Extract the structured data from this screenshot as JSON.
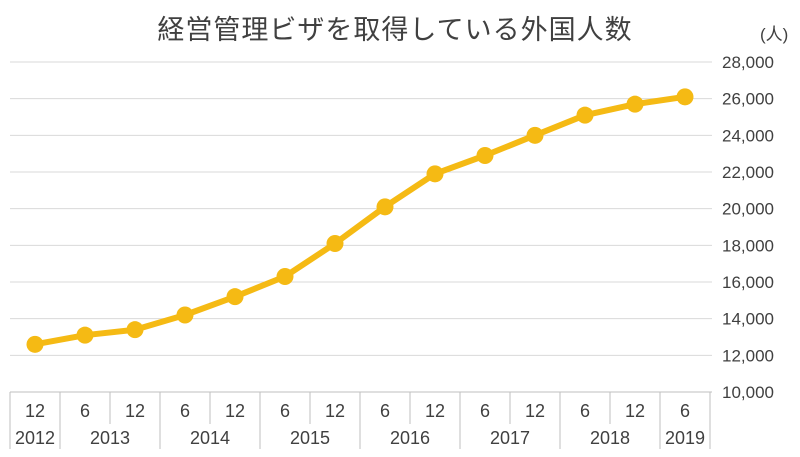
{
  "chart_data": {
    "type": "line",
    "title": "経営管理ビザを取得している外国人数",
    "unit_label": "(人)",
    "ylim": [
      10000,
      28000
    ],
    "y_ticks": [
      "10,000",
      "12,000",
      "14,000",
      "16,000",
      "18,000",
      "20,000",
      "22,000",
      "24,000",
      "26,000",
      "28,000"
    ],
    "grid": true,
    "line_color": "#F5BA14",
    "x_months": [
      "12",
      "6",
      "12",
      "6",
      "12",
      "6",
      "12",
      "6",
      "12",
      "6",
      "12",
      "6",
      "12",
      "6"
    ],
    "x_years": [
      {
        "label": "2012",
        "span": 1
      },
      {
        "label": "2013",
        "span": 2
      },
      {
        "label": "2014",
        "span": 2
      },
      {
        "label": "2015",
        "span": 2
      },
      {
        "label": "2016",
        "span": 2
      },
      {
        "label": "2017",
        "span": 2
      },
      {
        "label": "2018",
        "span": 2
      },
      {
        "label": "2019",
        "span": 1
      }
    ],
    "series": [
      {
        "values": [
          12600,
          13100,
          13400,
          14200,
          15200,
          16300,
          18100,
          20100,
          21900,
          22900,
          24000,
          25100,
          25700,
          26100
        ]
      }
    ]
  }
}
